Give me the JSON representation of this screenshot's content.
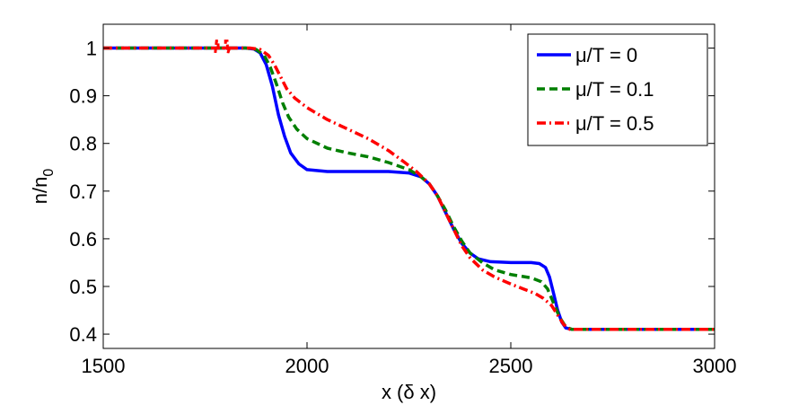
{
  "chart_data": {
    "type": "line",
    "xlabel": "x (δ x)",
    "ylabel": {
      "main": "n/n",
      "sub": "0"
    },
    "xlim": [
      1500,
      3000
    ],
    "ylim": [
      0.37,
      1.05
    ],
    "x_ticks": [
      1500,
      2000,
      2500,
      3000
    ],
    "y_ticks": [
      0.4,
      0.5,
      0.6,
      0.7,
      0.8,
      0.9,
      1
    ],
    "x_tick_labels": [
      "1500",
      "2000",
      "2500",
      "3000"
    ],
    "y_tick_labels": [
      "0.4",
      "0.5",
      "0.6",
      "0.7",
      "0.8",
      "0.9",
      "1"
    ],
    "grid": false,
    "legend_position": "top-right",
    "series": [
      {
        "name": "μ/T = 0",
        "color": "#0000ff",
        "style": "solid",
        "points": [
          [
            1500,
            1.0
          ],
          [
            1850,
            1.0
          ],
          [
            1870,
            0.998
          ],
          [
            1885,
            0.99
          ],
          [
            1900,
            0.965
          ],
          [
            1915,
            0.92
          ],
          [
            1930,
            0.86
          ],
          [
            1945,
            0.815
          ],
          [
            1960,
            0.78
          ],
          [
            1980,
            0.757
          ],
          [
            2000,
            0.745
          ],
          [
            2050,
            0.741
          ],
          [
            2100,
            0.741
          ],
          [
            2150,
            0.741
          ],
          [
            2200,
            0.741
          ],
          [
            2250,
            0.738
          ],
          [
            2280,
            0.73
          ],
          [
            2300,
            0.715
          ],
          [
            2320,
            0.69
          ],
          [
            2340,
            0.655
          ],
          [
            2360,
            0.62
          ],
          [
            2380,
            0.59
          ],
          [
            2400,
            0.57
          ],
          [
            2420,
            0.558
          ],
          [
            2450,
            0.552
          ],
          [
            2500,
            0.55
          ],
          [
            2550,
            0.55
          ],
          [
            2570,
            0.548
          ],
          [
            2585,
            0.54
          ],
          [
            2595,
            0.52
          ],
          [
            2605,
            0.485
          ],
          [
            2615,
            0.45
          ],
          [
            2625,
            0.425
          ],
          [
            2635,
            0.413
          ],
          [
            2650,
            0.41
          ],
          [
            3000,
            0.41
          ]
        ]
      },
      {
        "name": "μ/T = 0.1",
        "color": "#007f00",
        "style": "dashed",
        "points": [
          [
            1500,
            1.0
          ],
          [
            1850,
            1.0
          ],
          [
            1875,
            0.997
          ],
          [
            1895,
            0.985
          ],
          [
            1910,
            0.96
          ],
          [
            1925,
            0.925
          ],
          [
            1940,
            0.885
          ],
          [
            1955,
            0.855
          ],
          [
            1975,
            0.83
          ],
          [
            2000,
            0.81
          ],
          [
            2050,
            0.79
          ],
          [
            2100,
            0.78
          ],
          [
            2150,
            0.772
          ],
          [
            2200,
            0.76
          ],
          [
            2250,
            0.745
          ],
          [
            2280,
            0.73
          ],
          [
            2300,
            0.715
          ],
          [
            2320,
            0.69
          ],
          [
            2340,
            0.66
          ],
          [
            2360,
            0.625
          ],
          [
            2380,
            0.595
          ],
          [
            2400,
            0.57
          ],
          [
            2430,
            0.55
          ],
          [
            2460,
            0.535
          ],
          [
            2500,
            0.525
          ],
          [
            2550,
            0.518
          ],
          [
            2575,
            0.51
          ],
          [
            2590,
            0.495
          ],
          [
            2605,
            0.465
          ],
          [
            2620,
            0.435
          ],
          [
            2635,
            0.415
          ],
          [
            2650,
            0.41
          ],
          [
            3000,
            0.41
          ]
        ]
      },
      {
        "name": "μ/T = 0.5",
        "color": "#ff0000",
        "style": "dashdot",
        "points": [
          [
            1500,
            1.0
          ],
          [
            1860,
            1.0
          ],
          [
            1885,
            0.997
          ],
          [
            1905,
            0.985
          ],
          [
            1920,
            0.965
          ],
          [
            1935,
            0.94
          ],
          [
            1950,
            0.915
          ],
          [
            1970,
            0.895
          ],
          [
            2000,
            0.875
          ],
          [
            2050,
            0.85
          ],
          [
            2100,
            0.83
          ],
          [
            2150,
            0.81
          ],
          [
            2200,
            0.785
          ],
          [
            2240,
            0.76
          ],
          [
            2270,
            0.74
          ],
          [
            2300,
            0.715
          ],
          [
            2320,
            0.69
          ],
          [
            2340,
            0.655
          ],
          [
            2360,
            0.62
          ],
          [
            2380,
            0.585
          ],
          [
            2400,
            0.56
          ],
          [
            2430,
            0.535
          ],
          [
            2460,
            0.52
          ],
          [
            2500,
            0.505
          ],
          [
            2530,
            0.495
          ],
          [
            2560,
            0.485
          ],
          [
            2580,
            0.475
          ],
          [
            2600,
            0.46
          ],
          [
            2615,
            0.44
          ],
          [
            2630,
            0.42
          ],
          [
            2645,
            0.41
          ],
          [
            3000,
            0.41
          ]
        ]
      }
    ],
    "glitch_red": [
      [
        1775,
        0.99
      ],
      [
        1778,
        1.015
      ],
      [
        1782,
        1.015
      ],
      [
        1782,
        1.0
      ],
      [
        1800,
        1.0
      ],
      [
        1800,
        1.015
      ],
      [
        1804,
        1.015
      ],
      [
        1806,
        0.99
      ],
      [
        1810,
        1.0
      ]
    ]
  }
}
